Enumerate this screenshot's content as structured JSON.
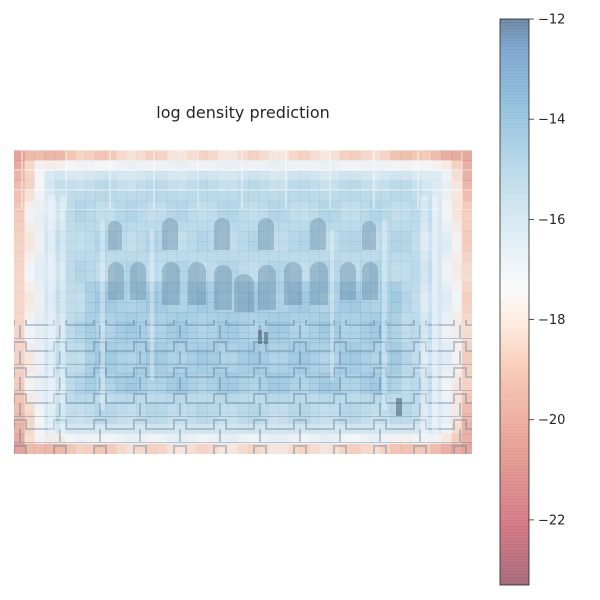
{
  "chart_data": {
    "type": "heatmap",
    "title": "log density prediction",
    "xlabel": "",
    "ylabel": "",
    "colormap": "RdBu (alpha ~0.6) overlaid on a grayscale photo of an arched atrium with a geometric tiled floor",
    "grid": false,
    "colorbar": {
      "position": "right",
      "range": [
        -23.3,
        -12
      ],
      "ticks": [
        -12,
        -14,
        -16,
        -18,
        -20,
        -22
      ],
      "tick_labels": [
        "−12",
        "−14",
        "−16",
        "−18",
        "−20",
        "−22"
      ]
    },
    "image_rows": 30,
    "image_cols": 45,
    "field_summary": {
      "center_value": -15.2,
      "edge_value": -19.0,
      "corner_value": -21.5
    }
  },
  "colors": {
    "low": "#b2182b",
    "mid": "#f7f7f7",
    "high": "#2166ac"
  }
}
